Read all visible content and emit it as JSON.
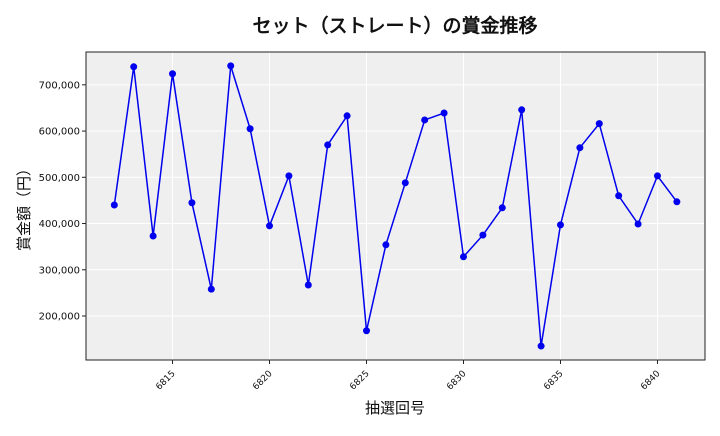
{
  "chart_data": {
    "type": "line",
    "title": "セット（ストレート）の賞金推移",
    "xlabel": "抽選回号",
    "ylabel": "賞金額（円）",
    "x": [
      6812,
      6813,
      6814,
      6815,
      6816,
      6817,
      6818,
      6819,
      6820,
      6821,
      6822,
      6823,
      6824,
      6825,
      6826,
      6827,
      6828,
      6829,
      6830,
      6831,
      6832,
      6833,
      6834,
      6835,
      6836,
      6837,
      6838,
      6839,
      6840,
      6841
    ],
    "series": [
      {
        "name": "賞金額",
        "color": "#0000ee",
        "values": [
          440000,
          739000,
          373000,
          724000,
          445000,
          258000,
          741000,
          605000,
          395000,
          503000,
          267000,
          570000,
          633000,
          168000,
          354000,
          488000,
          624000,
          639000,
          328000,
          375000,
          434000,
          646000,
          135000,
          397000,
          564000,
          616000,
          460000,
          399000,
          503000,
          447000
        ]
      }
    ],
    "xticks": [
      6815,
      6820,
      6825,
      6830,
      6835,
      6840
    ],
    "xtick_labels": [
      "6815",
      "6820",
      "6825",
      "6830",
      "6835",
      "6840"
    ],
    "yticks": [
      200000,
      300000,
      400000,
      500000,
      600000,
      700000
    ],
    "ytick_labels": [
      "200,000",
      "300,000",
      "400,000",
      "500,000",
      "600,000",
      "700,000"
    ],
    "xlim": [
      6810.54,
      6842.45
    ],
    "ylim": [
      104800,
      771000
    ],
    "grid": true,
    "background": "#efefef"
  }
}
